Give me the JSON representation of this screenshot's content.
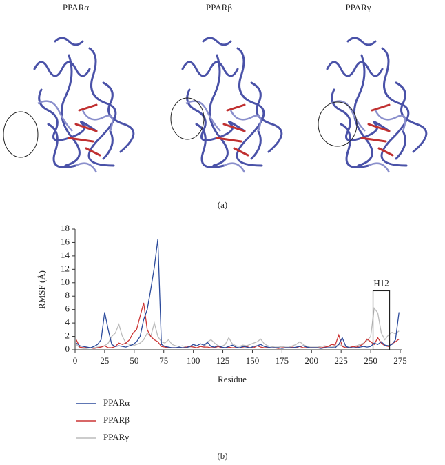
{
  "panel_a": {
    "structure_labels": [
      "PPARα",
      "PPARβ",
      "PPARγ"
    ],
    "caption": "(a)"
  },
  "panel_b": {
    "caption": "(b)"
  },
  "chart_data": {
    "type": "line",
    "x_label": "Residue",
    "y_label": "RMSF (Å)",
    "x": [
      1,
      4,
      7,
      10,
      13,
      16,
      19,
      22,
      25,
      28,
      31,
      34,
      37,
      40,
      43,
      46,
      49,
      52,
      55,
      58,
      61,
      64,
      67,
      70,
      73,
      76,
      79,
      82,
      85,
      88,
      91,
      94,
      97,
      100,
      103,
      106,
      109,
      112,
      115,
      118,
      121,
      124,
      127,
      130,
      133,
      136,
      139,
      142,
      145,
      148,
      151,
      154,
      157,
      160,
      163,
      166,
      169,
      172,
      175,
      178,
      181,
      184,
      187,
      190,
      193,
      196,
      199,
      202,
      205,
      208,
      211,
      214,
      217,
      220,
      223,
      226,
      229,
      232,
      235,
      238,
      241,
      244,
      247,
      250,
      253,
      256,
      259,
      262,
      265,
      268,
      271,
      274
    ],
    "series": [
      {
        "name": "PPARα",
        "color": "#2b4a9b",
        "values": [
          1.0,
          0.6,
          0.5,
          0.4,
          0.3,
          0.5,
          0.8,
          1.5,
          5.6,
          3.0,
          0.8,
          0.5,
          0.6,
          0.5,
          0.4,
          0.6,
          0.8,
          1.2,
          2.0,
          4.5,
          6.0,
          9.0,
          12.3,
          16.5,
          0.8,
          0.5,
          0.4,
          0.3,
          0.3,
          0.4,
          0.3,
          0.3,
          0.5,
          0.8,
          0.6,
          0.9,
          0.7,
          1.1,
          0.5,
          0.4,
          0.6,
          0.4,
          0.3,
          0.5,
          0.7,
          0.4,
          0.3,
          0.5,
          0.4,
          0.3,
          0.5,
          0.6,
          0.8,
          0.5,
          0.4,
          0.3,
          0.3,
          0.3,
          0.2,
          0.3,
          0.3,
          0.3,
          0.4,
          0.5,
          0.6,
          0.4,
          0.3,
          0.3,
          0.3,
          0.2,
          0.3,
          0.3,
          0.3,
          0.3,
          0.8,
          1.8,
          0.5,
          0.3,
          0.3,
          0.3,
          0.4,
          0.5,
          0.4,
          0.5,
          1.0,
          0.8,
          1.2,
          0.7,
          0.6,
          0.8,
          1.5,
          5.6
        ]
      },
      {
        "name": "PPARβ",
        "color": "#cc3535",
        "values": [
          1.5,
          0.4,
          0.3,
          0.3,
          0.3,
          0.2,
          0.3,
          0.4,
          0.6,
          0.3,
          0.3,
          0.5,
          1.0,
          0.8,
          1.0,
          1.5,
          2.5,
          3.0,
          5.0,
          7.0,
          3.0,
          2.0,
          1.5,
          1.2,
          0.5,
          0.4,
          0.3,
          0.3,
          0.3,
          0.3,
          0.3,
          0.4,
          0.5,
          0.4,
          0.3,
          0.5,
          0.4,
          0.4,
          0.3,
          0.3,
          0.5,
          0.3,
          0.3,
          0.4,
          0.3,
          0.3,
          0.3,
          0.4,
          0.5,
          0.3,
          0.3,
          0.6,
          0.4,
          0.3,
          0.3,
          0.3,
          0.3,
          0.2,
          0.3,
          0.3,
          0.3,
          0.4,
          0.3,
          0.5,
          0.3,
          0.3,
          0.3,
          0.3,
          0.3,
          0.3,
          0.4,
          0.5,
          0.8,
          0.7,
          2.2,
          0.5,
          0.3,
          0.3,
          0.5,
          0.4,
          0.6,
          0.9,
          1.6,
          1.2,
          0.8,
          1.8,
          1.0,
          0.6,
          0.5,
          0.9,
          1.2,
          1.6
        ]
      },
      {
        "name": "PPARγ",
        "color": "#bbbbbb",
        "values": [
          0.8,
          0.3,
          0.2,
          0.2,
          0.3,
          0.3,
          0.4,
          0.5,
          0.6,
          1.0,
          2.0,
          2.5,
          3.8,
          2.0,
          1.0,
          0.8,
          0.6,
          0.8,
          1.0,
          1.5,
          2.5,
          2.0,
          4.0,
          2.0,
          1.2,
          1.0,
          1.5,
          0.8,
          0.6,
          0.5,
          0.6,
          0.4,
          0.4,
          0.5,
          0.6,
          0.5,
          0.4,
          1.2,
          1.5,
          1.0,
          0.6,
          0.5,
          0.8,
          1.8,
          0.9,
          0.6,
          0.5,
          0.7,
          0.6,
          0.8,
          1.0,
          1.2,
          1.6,
          0.9,
          0.6,
          0.5,
          0.4,
          0.4,
          0.5,
          0.4,
          0.4,
          0.6,
          0.8,
          1.2,
          0.8,
          0.5,
          0.4,
          0.4,
          0.4,
          0.5,
          0.6,
          0.5,
          0.4,
          0.5,
          0.8,
          0.6,
          0.5,
          0.4,
          0.5,
          0.6,
          0.8,
          1.0,
          1.4,
          2.0,
          6.2,
          5.5,
          2.5,
          1.5,
          2.2,
          2.6,
          2.4,
          2.8
        ]
      }
    ],
    "xlim": [
      0,
      275
    ],
    "xticks": [
      0,
      25,
      50,
      75,
      100,
      125,
      150,
      175,
      200,
      225,
      250,
      275
    ],
    "ylim": [
      0,
      18
    ],
    "yticks": [
      0,
      2,
      4,
      6,
      8,
      10,
      12,
      14,
      16,
      18
    ],
    "grid": false,
    "annotations": [
      {
        "text": "H12",
        "x": [
          252,
          266
        ],
        "y": 8.8
      }
    ]
  }
}
